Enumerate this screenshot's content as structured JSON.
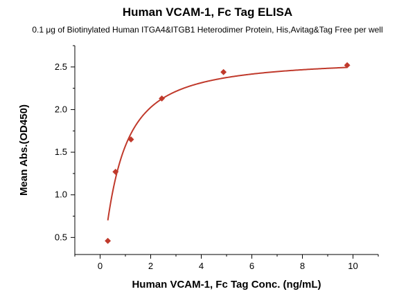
{
  "chart_data": {
    "type": "scatter",
    "title": "Human VCAM-1, Fc Tag ELISA",
    "subtitle": "0.1 μg of Biotinylated Human ITGA4&ITGB1 Heterodimer Protein, His,Avitag&Tag Free per well",
    "xlabel": "Human VCAM-1, Fc Tag Conc. (ng/mL)",
    "ylabel": "Mean Abs.(OD450)",
    "xlim": [
      -1,
      11
    ],
    "ylim": [
      0.3,
      2.75
    ],
    "x_ticks": [
      0,
      2,
      4,
      6,
      8,
      10
    ],
    "y_ticks": [
      0.5,
      1.0,
      1.5,
      2.0,
      2.5
    ],
    "x_tick_labels": [
      "0",
      "2",
      "4",
      "6",
      "8",
      "10"
    ],
    "y_tick_labels": [
      "0.5",
      "1.0",
      "1.5",
      "2.0",
      "2.5"
    ],
    "grid": false,
    "series": [
      {
        "points": [
          {
            "x": 0.305,
            "y": 0.46
          },
          {
            "x": 0.61,
            "y": 1.27
          },
          {
            "x": 1.22,
            "y": 1.65
          },
          {
            "x": 2.44,
            "y": 2.13
          },
          {
            "x": 4.88,
            "y": 2.44
          },
          {
            "x": 9.77,
            "y": 2.52
          }
        ],
        "fit": "hill",
        "fit_params": {
          "bottom": 0.0,
          "top": 2.6,
          "ec50": 0.7,
          "hill": 1.2
        },
        "color": "#c0392b"
      }
    ]
  }
}
